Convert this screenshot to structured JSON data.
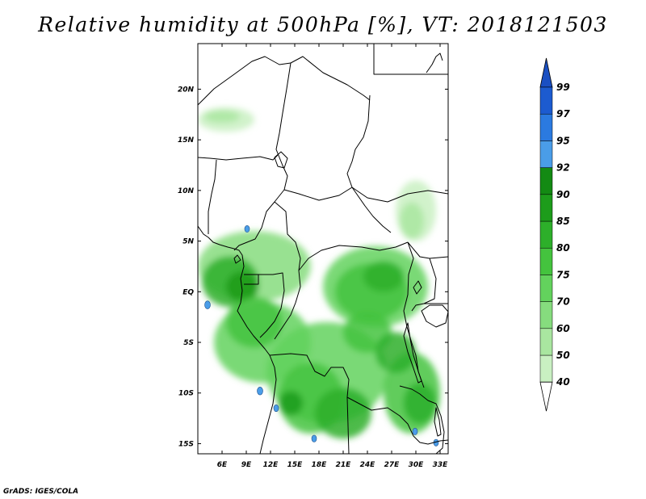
{
  "title": "Relative humidity at 500hPa [%], VT: 2018121503",
  "credit": "GrADS: IGES/COLA",
  "map": {
    "lon_range": [
      3,
      34
    ],
    "lat_range": [
      -16,
      24.5
    ],
    "lon_ticks": [
      {
        "value": 6,
        "label": "6E"
      },
      {
        "value": 9,
        "label": "9E"
      },
      {
        "value": 12,
        "label": "12E"
      },
      {
        "value": 15,
        "label": "15E"
      },
      {
        "value": 18,
        "label": "18E"
      },
      {
        "value": 21,
        "label": "21E"
      },
      {
        "value": 24,
        "label": "24E"
      },
      {
        "value": 27,
        "label": "27E"
      },
      {
        "value": 30,
        "label": "30E"
      },
      {
        "value": 33,
        "label": "33E"
      }
    ],
    "lat_ticks": [
      {
        "value": 20,
        "label": "20N"
      },
      {
        "value": 15,
        "label": "15N"
      },
      {
        "value": 10,
        "label": "10N"
      },
      {
        "value": 5,
        "label": "5N"
      },
      {
        "value": 0,
        "label": "EQ"
      },
      {
        "value": -5,
        "label": "5S"
      },
      {
        "value": -10,
        "label": "10S"
      },
      {
        "value": -15,
        "label": "15S"
      }
    ]
  },
  "colorbar": {
    "levels": [
      "40",
      "50",
      "60",
      "70",
      "75",
      "80",
      "85",
      "90",
      "92",
      "95",
      "97",
      "99"
    ],
    "colors": [
      "#e6f9e1",
      "#c9f0c2",
      "#a9e6a0",
      "#86dc7e",
      "#63d25d",
      "#44c33e",
      "#2daf2a",
      "#1d9c1b",
      "#138a13",
      "#4a9de8",
      "#2b7ae0",
      "#1c5bd0"
    ],
    "under_color": "#ffffff",
    "over_color": "#1a4fc2"
  },
  "fields": {
    "moist_blobs": [
      {
        "lon": 6.5,
        "lat": 17.0,
        "rlon": 3.5,
        "rlat": 1.2,
        "level": 1
      },
      {
        "lon": 6.0,
        "lat": 17.3,
        "rlon": 2.2,
        "rlat": 0.6,
        "level": 2
      },
      {
        "lon": 30.0,
        "lat": 8.0,
        "rlon": 2.5,
        "rlat": 3.0,
        "level": 1
      },
      {
        "lon": 29.5,
        "lat": 7.0,
        "rlon": 1.5,
        "rlat": 1.8,
        "level": 2
      },
      {
        "lon": 10.0,
        "lat": 2.5,
        "rlon": 7.0,
        "rlat": 3.5,
        "level": 3
      },
      {
        "lon": 7.0,
        "lat": 1.0,
        "rlon": 3.5,
        "rlat": 2.5,
        "level": 6
      },
      {
        "lon": 8.5,
        "lat": 0.5,
        "rlon": 2.0,
        "rlat": 1.5,
        "level": 7
      },
      {
        "lon": 25.0,
        "lat": 0.5,
        "rlon": 6.5,
        "rlat": 4.0,
        "level": 4
      },
      {
        "lon": 24.5,
        "lat": 0.0,
        "rlon": 4.5,
        "rlat": 2.8,
        "level": 5
      },
      {
        "lon": 26.0,
        "lat": 1.5,
        "rlon": 2.5,
        "rlat": 1.5,
        "level": 6
      },
      {
        "lon": 11.0,
        "lat": -5.0,
        "rlon": 6.0,
        "rlat": 4.0,
        "level": 4
      },
      {
        "lon": 10.0,
        "lat": -3.0,
        "rlon": 3.5,
        "rlat": 2.5,
        "level": 5
      },
      {
        "lon": 19.0,
        "lat": -8.0,
        "rlon": 7.5,
        "rlat": 5.0,
        "level": 4
      },
      {
        "lon": 17.0,
        "lat": -10.5,
        "rlon": 4.0,
        "rlat": 3.5,
        "level": 5
      },
      {
        "lon": 21.0,
        "lat": -12.0,
        "rlon": 3.5,
        "rlat": 2.5,
        "level": 6
      },
      {
        "lon": 29.5,
        "lat": -10.0,
        "rlon": 3.5,
        "rlat": 4.0,
        "level": 5
      },
      {
        "lon": 30.5,
        "lat": -11.0,
        "rlon": 2.0,
        "rlat": 2.0,
        "level": 6
      },
      {
        "lon": 14.5,
        "lat": -11.0,
        "rlon": 1.5,
        "rlat": 1.2,
        "level": 7
      },
      {
        "lon": 24.0,
        "lat": -4.0,
        "rlon": 3.0,
        "rlat": 2.0,
        "level": 5
      },
      {
        "lon": 27.5,
        "lat": -6.0,
        "rlon": 2.5,
        "rlat": 2.0,
        "level": 6
      }
    ],
    "peak_spots": [
      {
        "lon": 4.2,
        "lat": -1.3,
        "r": 0.35
      },
      {
        "lon": 9.1,
        "lat": 6.2,
        "r": 0.3
      },
      {
        "lon": 10.7,
        "lat": -9.8,
        "r": 0.35
      },
      {
        "lon": 12.7,
        "lat": -11.5,
        "r": 0.3
      },
      {
        "lon": 17.4,
        "lat": -14.5,
        "r": 0.3
      },
      {
        "lon": 29.9,
        "lat": -13.8,
        "r": 0.3
      },
      {
        "lon": 32.5,
        "lat": -14.9,
        "r": 0.3
      }
    ]
  }
}
